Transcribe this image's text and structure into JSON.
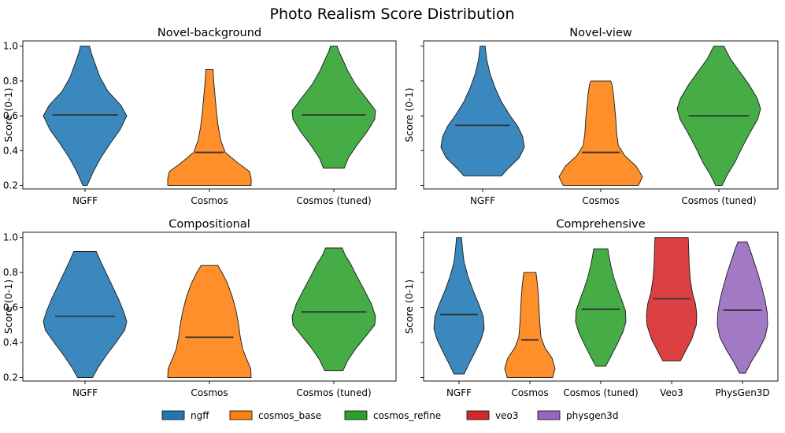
{
  "figure_title": "Photo Realism Score Distribution",
  "legend": [
    {
      "label": "ngff",
      "color": "#1f77b4"
    },
    {
      "label": "cosmos_base",
      "color": "#ff7f0e"
    },
    {
      "label": "cosmos_refine",
      "color": "#2ca02c"
    },
    {
      "label": "veo3",
      "color": "#d62728"
    },
    {
      "label": "physgen3d",
      "color": "#9467bd"
    }
  ],
  "chart_data": [
    {
      "type": "violin",
      "title": "Novel-background",
      "ylabel": "Score (0-1)",
      "ylim": [
        0.18,
        1.03
      ],
      "yticks": [
        0.2,
        0.4,
        0.6,
        0.8,
        1.0
      ],
      "ytick_labels": [
        "0.2",
        "0.4",
        "0.6",
        "0.8",
        "1.0"
      ],
      "categories": [
        "NGFF",
        "Cosmos",
        "Cosmos (tuned)"
      ],
      "series": [
        {
          "name": "NGFF",
          "color": "#1f77b4",
          "median": 0.605,
          "min": 0.2,
          "max": 1.0,
          "profile": [
            [
              0.2,
              0.05
            ],
            [
              0.28,
              0.2
            ],
            [
              0.36,
              0.38
            ],
            [
              0.44,
              0.6
            ],
            [
              0.52,
              0.84
            ],
            [
              0.6,
              1.0
            ],
            [
              0.66,
              0.86
            ],
            [
              0.74,
              0.55
            ],
            [
              0.82,
              0.36
            ],
            [
              0.9,
              0.24
            ],
            [
              0.96,
              0.15
            ],
            [
              1.0,
              0.11
            ]
          ]
        },
        {
          "name": "Cosmos",
          "color": "#ff7f0e",
          "median": 0.39,
          "min": 0.2,
          "max": 0.865,
          "profile": [
            [
              0.2,
              1.0
            ],
            [
              0.24,
              1.0
            ],
            [
              0.28,
              0.96
            ],
            [
              0.33,
              0.68
            ],
            [
              0.39,
              0.38
            ],
            [
              0.46,
              0.27
            ],
            [
              0.54,
              0.21
            ],
            [
              0.62,
              0.17
            ],
            [
              0.7,
              0.14
            ],
            [
              0.78,
              0.11
            ],
            [
              0.84,
              0.09
            ],
            [
              0.865,
              0.09
            ]
          ]
        },
        {
          "name": "Cosmos (tuned)",
          "color": "#2ca02c",
          "median": 0.605,
          "min": 0.3,
          "max": 1.0,
          "profile": [
            [
              0.3,
              0.25
            ],
            [
              0.36,
              0.35
            ],
            [
              0.43,
              0.55
            ],
            [
              0.51,
              0.8
            ],
            [
              0.58,
              0.98
            ],
            [
              0.63,
              1.0
            ],
            [
              0.7,
              0.78
            ],
            [
              0.78,
              0.52
            ],
            [
              0.86,
              0.33
            ],
            [
              0.93,
              0.2
            ],
            [
              0.97,
              0.12
            ],
            [
              1.0,
              0.08
            ]
          ]
        }
      ]
    },
    {
      "type": "violin",
      "title": "Novel-view",
      "ylabel": "Score (0-1)",
      "ylim": [
        0.18,
        1.03
      ],
      "yticks": [
        0.2,
        0.4,
        0.6,
        0.8,
        1.0
      ],
      "ytick_labels": [
        "",
        "",
        "",
        "",
        ""
      ],
      "categories": [
        "NGFF",
        "Cosmos",
        "Cosmos (tuned)"
      ],
      "series": [
        {
          "name": "NGFF",
          "color": "#1f77b4",
          "median": 0.545,
          "min": 0.255,
          "max": 1.0,
          "profile": [
            [
              0.255,
              0.45
            ],
            [
              0.3,
              0.62
            ],
            [
              0.36,
              0.88
            ],
            [
              0.42,
              1.0
            ],
            [
              0.48,
              0.96
            ],
            [
              0.54,
              0.84
            ],
            [
              0.6,
              0.66
            ],
            [
              0.68,
              0.45
            ],
            [
              0.76,
              0.3
            ],
            [
              0.84,
              0.18
            ],
            [
              0.92,
              0.1
            ],
            [
              1.0,
              0.06
            ]
          ]
        },
        {
          "name": "Cosmos",
          "color": "#ff7f0e",
          "median": 0.39,
          "min": 0.2,
          "max": 0.8,
          "profile": [
            [
              0.2,
              0.9
            ],
            [
              0.25,
              1.0
            ],
            [
              0.31,
              0.85
            ],
            [
              0.37,
              0.58
            ],
            [
              0.43,
              0.42
            ],
            [
              0.5,
              0.38
            ],
            [
              0.58,
              0.36
            ],
            [
              0.66,
              0.33
            ],
            [
              0.73,
              0.3
            ],
            [
              0.78,
              0.27
            ],
            [
              0.8,
              0.24
            ]
          ]
        },
        {
          "name": "Cosmos (tuned)",
          "color": "#2ca02c",
          "median": 0.6,
          "min": 0.2,
          "max": 1.0,
          "profile": [
            [
              0.2,
              0.08
            ],
            [
              0.26,
              0.2
            ],
            [
              0.33,
              0.38
            ],
            [
              0.42,
              0.56
            ],
            [
              0.5,
              0.74
            ],
            [
              0.58,
              0.93
            ],
            [
              0.64,
              1.0
            ],
            [
              0.7,
              0.92
            ],
            [
              0.78,
              0.72
            ],
            [
              0.86,
              0.48
            ],
            [
              0.93,
              0.27
            ],
            [
              1.0,
              0.12
            ]
          ]
        }
      ]
    },
    {
      "type": "violin",
      "title": "Compositional",
      "ylabel": "Score (0-1)",
      "ylim": [
        0.18,
        1.03
      ],
      "yticks": [
        0.2,
        0.4,
        0.6,
        0.8,
        1.0
      ],
      "ytick_labels": [
        "0.2",
        "0.4",
        "0.6",
        "0.8",
        "1.0"
      ],
      "categories": [
        "NGFF",
        "Cosmos",
        "Cosmos (tuned)"
      ],
      "series": [
        {
          "name": "NGFF",
          "color": "#1f77b4",
          "median": 0.55,
          "min": 0.2,
          "max": 0.92,
          "profile": [
            [
              0.2,
              0.18
            ],
            [
              0.26,
              0.32
            ],
            [
              0.33,
              0.52
            ],
            [
              0.4,
              0.74
            ],
            [
              0.47,
              0.95
            ],
            [
              0.52,
              1.0
            ],
            [
              0.58,
              0.92
            ],
            [
              0.65,
              0.8
            ],
            [
              0.72,
              0.66
            ],
            [
              0.8,
              0.5
            ],
            [
              0.87,
              0.36
            ],
            [
              0.92,
              0.27
            ]
          ]
        },
        {
          "name": "Cosmos",
          "color": "#ff7f0e",
          "median": 0.43,
          "min": 0.2,
          "max": 0.84,
          "profile": [
            [
              0.2,
              1.0
            ],
            [
              0.25,
              0.99
            ],
            [
              0.3,
              0.9
            ],
            [
              0.36,
              0.8
            ],
            [
              0.43,
              0.74
            ],
            [
              0.5,
              0.7
            ],
            [
              0.58,
              0.64
            ],
            [
              0.66,
              0.55
            ],
            [
              0.74,
              0.43
            ],
            [
              0.8,
              0.3
            ],
            [
              0.84,
              0.2
            ]
          ]
        },
        {
          "name": "Cosmos (tuned)",
          "color": "#2ca02c",
          "median": 0.575,
          "min": 0.24,
          "max": 0.94,
          "profile": [
            [
              0.24,
              0.22
            ],
            [
              0.3,
              0.34
            ],
            [
              0.37,
              0.54
            ],
            [
              0.44,
              0.78
            ],
            [
              0.5,
              0.98
            ],
            [
              0.55,
              1.0
            ],
            [
              0.62,
              0.9
            ],
            [
              0.7,
              0.73
            ],
            [
              0.78,
              0.55
            ],
            [
              0.85,
              0.4
            ],
            [
              0.9,
              0.27
            ],
            [
              0.94,
              0.2
            ]
          ]
        }
      ]
    },
    {
      "type": "violin",
      "title": "Comprehensive",
      "ylabel": "Score (0-1)",
      "ylim": [
        0.18,
        1.03
      ],
      "yticks": [
        0.2,
        0.4,
        0.6,
        0.8,
        1.0
      ],
      "ytick_labels": [
        "",
        "",
        "",
        "",
        ""
      ],
      "categories": [
        "NGFF",
        "Cosmos",
        "Cosmos (tuned)",
        "Veo3",
        "PhysGen3D"
      ],
      "series": [
        {
          "name": "NGFF",
          "color": "#1f77b4",
          "median": 0.56,
          "min": 0.22,
          "max": 1.0,
          "profile": [
            [
              0.22,
              0.2
            ],
            [
              0.28,
              0.4
            ],
            [
              0.35,
              0.65
            ],
            [
              0.42,
              0.88
            ],
            [
              0.48,
              1.0
            ],
            [
              0.55,
              0.96
            ],
            [
              0.62,
              0.78
            ],
            [
              0.7,
              0.55
            ],
            [
              0.78,
              0.35
            ],
            [
              0.86,
              0.2
            ],
            [
              0.93,
              0.14
            ],
            [
              1.0,
              0.1
            ]
          ]
        },
        {
          "name": "Cosmos",
          "color": "#ff7f0e",
          "median": 0.415,
          "min": 0.2,
          "max": 0.8,
          "profile": [
            [
              0.2,
              0.9
            ],
            [
              0.25,
              1.0
            ],
            [
              0.31,
              0.88
            ],
            [
              0.37,
              0.6
            ],
            [
              0.43,
              0.44
            ],
            [
              0.5,
              0.4
            ],
            [
              0.58,
              0.37
            ],
            [
              0.66,
              0.34
            ],
            [
              0.73,
              0.3
            ],
            [
              0.78,
              0.26
            ],
            [
              0.8,
              0.24
            ]
          ]
        },
        {
          "name": "Cosmos (tuned)",
          "color": "#2ca02c",
          "median": 0.59,
          "min": 0.265,
          "max": 0.935,
          "profile": [
            [
              0.265,
              0.2
            ],
            [
              0.32,
              0.4
            ],
            [
              0.39,
              0.65
            ],
            [
              0.46,
              0.88
            ],
            [
              0.52,
              1.0
            ],
            [
              0.58,
              0.98
            ],
            [
              0.64,
              0.84
            ],
            [
              0.7,
              0.68
            ],
            [
              0.77,
              0.52
            ],
            [
              0.84,
              0.4
            ],
            [
              0.9,
              0.32
            ],
            [
              0.935,
              0.28
            ]
          ]
        },
        {
          "name": "Veo3",
          "color": "#d62728",
          "median": 0.65,
          "min": 0.295,
          "max": 1.0,
          "profile": [
            [
              0.295,
              0.35
            ],
            [
              0.35,
              0.55
            ],
            [
              0.42,
              0.8
            ],
            [
              0.5,
              0.98
            ],
            [
              0.56,
              1.0
            ],
            [
              0.62,
              0.95
            ],
            [
              0.68,
              0.83
            ],
            [
              0.76,
              0.74
            ],
            [
              0.84,
              0.7
            ],
            [
              0.92,
              0.68
            ],
            [
              0.97,
              0.67
            ],
            [
              1.0,
              0.66
            ]
          ]
        },
        {
          "name": "PhysGen3D",
          "color": "#9467bd",
          "median": 0.585,
          "min": 0.225,
          "max": 0.975,
          "profile": [
            [
              0.225,
              0.12
            ],
            [
              0.29,
              0.35
            ],
            [
              0.36,
              0.65
            ],
            [
              0.43,
              0.9
            ],
            [
              0.5,
              1.0
            ],
            [
              0.57,
              0.98
            ],
            [
              0.64,
              0.9
            ],
            [
              0.72,
              0.76
            ],
            [
              0.8,
              0.6
            ],
            [
              0.87,
              0.44
            ],
            [
              0.93,
              0.3
            ],
            [
              0.975,
              0.18
            ]
          ]
        }
      ]
    }
  ]
}
